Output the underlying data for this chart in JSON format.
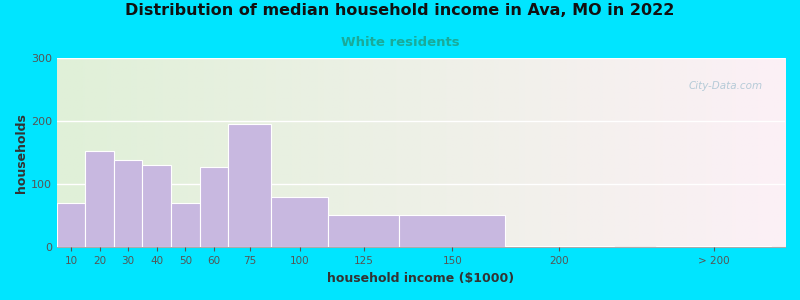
{
  "title": "Distribution of median household income in Ava, MO in 2022",
  "subtitle": "White residents",
  "xlabel": "household income ($1000)",
  "ylabel": "households",
  "title_fontsize": 11.5,
  "subtitle_fontsize": 9.5,
  "subtitle_color": "#1aaa99",
  "bar_color": "#c8b8e0",
  "bar_edge_color": "#ffffff",
  "background_outer": "#00e5ff",
  "ylim": [
    0,
    300
  ],
  "yticks": [
    0,
    100,
    200,
    300
  ],
  "bar_lefts": [
    5,
    15,
    25,
    35,
    45,
    55,
    65,
    80,
    100,
    125,
    162,
    215
  ],
  "bar_rights": [
    15,
    25,
    35,
    45,
    55,
    65,
    80,
    100,
    125,
    162,
    200,
    255
  ],
  "values": [
    70,
    152,
    138,
    130,
    70,
    128,
    196,
    80,
    52,
    52,
    3,
    3
  ],
  "xtick_labels": [
    "10",
    "20",
    "30",
    "40",
    "50",
    "60",
    "75",
    "100",
    "125",
    "150",
    "200",
    "> 200"
  ],
  "xtick_positions": [
    10,
    20,
    30,
    40,
    50,
    60,
    72.5,
    90,
    112.5,
    143.5,
    181,
    235
  ],
  "xlim": [
    5,
    260
  ],
  "watermark": "City-Data.com"
}
